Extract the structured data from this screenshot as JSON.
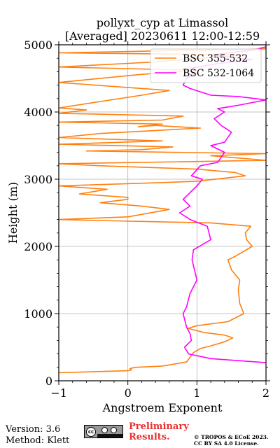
{
  "chart_data": {
    "type": "line",
    "title": "pollyxt_cyp at Limassol",
    "subtitle": "[Averaged] 20230611 12:00-12:59",
    "xlabel": "Angstroem Exponent",
    "ylabel": "Height (m)",
    "xlim": [
      -1,
      2
    ],
    "ylim": [
      0,
      5000
    ],
    "x_ticks": [
      "−1",
      "0",
      "1",
      "2"
    ],
    "y_ticks": [
      "0",
      "1000",
      "2000",
      "3000",
      "4000",
      "5000"
    ],
    "grid": true,
    "legend_position": "top-right",
    "series": [
      {
        "name": "BSC 355-532",
        "color": "#ff7f0e",
        "points": [
          [
            -1.0,
            120
          ],
          [
            0.0,
            150
          ],
          [
            0.05,
            160
          ],
          [
            0.03,
            180
          ],
          [
            0.1,
            200
          ],
          [
            0.5,
            220
          ],
          [
            0.85,
            280
          ],
          [
            0.9,
            350
          ],
          [
            0.95,
            420
          ],
          [
            1.05,
            480
          ],
          [
            1.2,
            520
          ],
          [
            1.4,
            580
          ],
          [
            1.52,
            640
          ],
          [
            1.4,
            680
          ],
          [
            1.1,
            720
          ],
          [
            0.87,
            780
          ],
          [
            1.0,
            820
          ],
          [
            1.45,
            880
          ],
          [
            1.68,
            1000
          ],
          [
            1.62,
            1150
          ],
          [
            1.6,
            1350
          ],
          [
            1.62,
            1500
          ],
          [
            1.5,
            1650
          ],
          [
            1.45,
            1800
          ],
          [
            1.55,
            1850
          ],
          [
            1.8,
            2000
          ],
          [
            1.72,
            2100
          ],
          [
            1.7,
            2200
          ],
          [
            1.78,
            2300
          ],
          [
            1.2,
            2350
          ],
          [
            -0.2,
            2380
          ],
          [
            -1.0,
            2400
          ],
          [
            0.0,
            2440
          ],
          [
            0.6,
            2550
          ],
          [
            0.2,
            2600
          ],
          [
            -0.4,
            2650
          ],
          [
            0.0,
            2700
          ],
          [
            0.0,
            2730
          ],
          [
            -0.7,
            2780
          ],
          [
            -0.3,
            2850
          ],
          [
            -1.0,
            2900
          ],
          [
            0.5,
            2950
          ],
          [
            1.0,
            2970
          ],
          [
            1.7,
            3050
          ],
          [
            1.55,
            3100
          ],
          [
            1.0,
            3150
          ],
          [
            -0.4,
            3200
          ],
          [
            -1.0,
            3230
          ],
          [
            2.0,
            3280
          ],
          [
            1.2,
            3350
          ],
          [
            2.0,
            3380
          ],
          [
            -0.6,
            3420
          ],
          [
            0.2,
            3440
          ],
          [
            0.65,
            3480
          ],
          [
            -1.0,
            3520
          ],
          [
            0.5,
            3570
          ],
          [
            -1.0,
            3620
          ],
          [
            -0.4,
            3680
          ],
          [
            1.05,
            3760
          ],
          [
            0.4,
            3800
          ],
          [
            0.15,
            3780
          ],
          [
            0.5,
            3820
          ],
          [
            -1.0,
            3850
          ],
          [
            0.5,
            3880
          ],
          [
            0.8,
            3940
          ],
          [
            -1.0,
            3980
          ],
          [
            -0.6,
            4030
          ],
          [
            -1.0,
            4060
          ],
          [
            0.2,
            4250
          ],
          [
            0.6,
            4320
          ],
          [
            -1.0,
            4440
          ],
          [
            0.2,
            4560
          ],
          [
            1.0,
            4620
          ],
          [
            -1.0,
            4670
          ],
          [
            0.3,
            4740
          ],
          [
            1.7,
            4850
          ],
          [
            -1.0,
            4880
          ],
          [
            2.0,
            4940
          ]
        ]
      },
      {
        "name": "BSC 532-1064",
        "color": "#ff00ff",
        "points": [
          [
            2.0,
            270
          ],
          [
            1.6,
            300
          ],
          [
            1.2,
            330
          ],
          [
            0.88,
            400
          ],
          [
            0.82,
            500
          ],
          [
            0.92,
            600
          ],
          [
            0.9,
            700
          ],
          [
            0.85,
            800
          ],
          [
            0.8,
            1000
          ],
          [
            0.85,
            1100
          ],
          [
            0.9,
            1300
          ],
          [
            1.0,
            1500
          ],
          [
            0.93,
            1800
          ],
          [
            0.95,
            1950
          ],
          [
            1.2,
            2100
          ],
          [
            1.15,
            2300
          ],
          [
            0.9,
            2400
          ],
          [
            0.75,
            2500
          ],
          [
            0.9,
            2600
          ],
          [
            0.8,
            2700
          ],
          [
            0.9,
            2800
          ],
          [
            1.0,
            2900
          ],
          [
            1.08,
            3000
          ],
          [
            0.92,
            3050
          ],
          [
            1.05,
            3200
          ],
          [
            1.3,
            3250
          ],
          [
            1.4,
            3400
          ],
          [
            1.2,
            3500
          ],
          [
            1.4,
            3550
          ],
          [
            1.5,
            3700
          ],
          [
            1.35,
            3800
          ],
          [
            1.25,
            3900
          ],
          [
            1.4,
            4000
          ],
          [
            1.3,
            4050
          ],
          [
            1.6,
            4100
          ],
          [
            2.0,
            4180
          ],
          [
            1.6,
            4230
          ],
          [
            1.2,
            4250
          ],
          [
            0.9,
            4350
          ],
          [
            0.8,
            4400
          ],
          [
            0.85,
            4500
          ],
          [
            0.95,
            4550
          ],
          [
            0.9,
            4650
          ],
          [
            1.3,
            4720
          ],
          [
            1.8,
            4780
          ],
          [
            1.2,
            4850
          ],
          [
            1.8,
            4920
          ],
          [
            2.0,
            4970
          ]
        ]
      }
    ]
  },
  "footer": {
    "version": "Version: 3.6",
    "method": "Method: Klett",
    "preliminary_line1": "Preliminary",
    "preliminary_line2": "Results.",
    "copyright_line1": "© TROPOS & ECoE 2023.",
    "copyright_line2": "CC BY SA 4.0 License.",
    "license_badge": "cc",
    "license_badge_sub": "BY SA"
  }
}
